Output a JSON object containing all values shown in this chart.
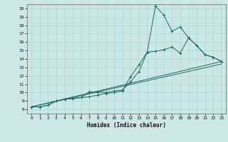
{
  "xlabel": "Humidex (Indice chaleur)",
  "bg_color": "#cce8e4",
  "line_color": "#1a6b5a",
  "grid_color": "#a8d8d0",
  "xlim": [
    -0.5,
    23.5
  ],
  "ylim": [
    7.5,
    20.5
  ],
  "xticks": [
    0,
    1,
    2,
    3,
    4,
    5,
    6,
    7,
    8,
    9,
    10,
    11,
    12,
    13,
    14,
    15,
    16,
    17,
    18,
    19,
    20,
    21,
    22,
    23
  ],
  "yticks": [
    8,
    9,
    10,
    11,
    12,
    13,
    14,
    15,
    16,
    17,
    18,
    19,
    20
  ],
  "line1_x": [
    0,
    1,
    2,
    3,
    4,
    5,
    6,
    7,
    8,
    9,
    10,
    11,
    12,
    13,
    14,
    15,
    16,
    17,
    18,
    19,
    20,
    21,
    22,
    23
  ],
  "line1_y": [
    8.3,
    8.3,
    8.5,
    9.0,
    9.2,
    9.3,
    9.4,
    9.5,
    9.7,
    9.9,
    10.0,
    10.2,
    11.9,
    13.3,
    14.8,
    20.3,
    19.2,
    17.3,
    17.8,
    16.5,
    15.6,
    14.5,
    14.2,
    13.7
  ],
  "line2_x": [
    0,
    1,
    2,
    3,
    4,
    5,
    6,
    7,
    8,
    9,
    10,
    11,
    12,
    13,
    14,
    15,
    16,
    17,
    18,
    19,
    20,
    21,
    22,
    23
  ],
  "line2_y": [
    8.3,
    8.3,
    8.5,
    9.0,
    9.2,
    9.3,
    9.4,
    10.1,
    10.05,
    10.0,
    10.2,
    10.3,
    11.3,
    12.5,
    14.8,
    14.9,
    15.1,
    15.4,
    14.7,
    16.5,
    15.6,
    14.5,
    14.2,
    13.7
  ],
  "line3_x": [
    0,
    23
  ],
  "line3_y": [
    8.3,
    13.7
  ],
  "line4_x": [
    0,
    23
  ],
  "line4_y": [
    8.3,
    13.4
  ]
}
